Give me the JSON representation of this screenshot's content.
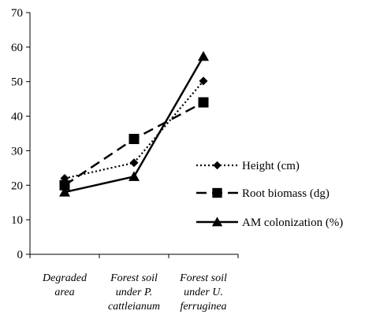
{
  "chart_data": {
    "type": "line",
    "title": "",
    "xlabel": "",
    "ylabel": "",
    "ylim": [
      0,
      70
    ],
    "yticks": [
      0,
      10,
      20,
      30,
      40,
      50,
      60,
      70
    ],
    "categories": [
      [
        "Degraded",
        "area"
      ],
      [
        "Forest soil",
        "under P.",
        "cattleianum"
      ],
      [
        "Forest soil",
        "under U.",
        "ferruginea"
      ]
    ],
    "series": [
      {
        "name": "Height (cm)",
        "values": [
          22,
          26.5,
          50.2
        ],
        "line": "dotted",
        "marker": "diamond"
      },
      {
        "name": "Root biomass (dg)",
        "values": [
          20,
          33.4,
          44
        ],
        "line": "dashed",
        "marker": "square"
      },
      {
        "name": "AM colonization (%)",
        "values": [
          18,
          22.5,
          57.3
        ],
        "line": "solid",
        "marker": "triangle"
      }
    ],
    "grid": false,
    "legend": "right"
  }
}
